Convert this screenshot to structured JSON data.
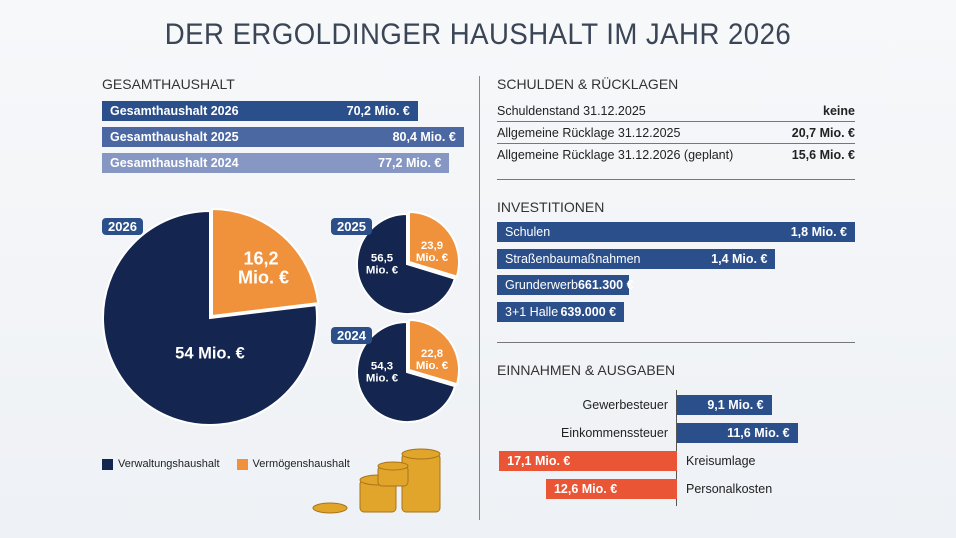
{
  "title": "DER ERGOLDINGER HAUSHALT IM JAHR 2026",
  "colors": {
    "verwaltung": "#14254f",
    "vermoegen": "#f0913b",
    "bar2026": "#2b4f8a",
    "bar2025": "#4b68a3",
    "bar2024": "#8697c4",
    "invest": "#2b4f8a",
    "einnahmen": "#2b4f8a",
    "ausgaben": "#ea5535"
  },
  "gesamt": {
    "heading": "GESAMTHAUSHALT",
    "bars": [
      {
        "label": "Gesamthaushalt 2026",
        "value": 70.2,
        "text": "70,2 Mio. €"
      },
      {
        "label": "Gesamthaushalt 2025",
        "value": 80.4,
        "text": "80,4 Mio. €"
      },
      {
        "label": "Gesamthaushalt 2024",
        "value": 77.2,
        "text": "77,2 Mio. €"
      }
    ]
  },
  "chart_data": [
    {
      "type": "pie",
      "title": "2026",
      "slices": [
        {
          "name": "Verwaltungshaushalt",
          "value": 54,
          "label": "54 Mio. €"
        },
        {
          "name": "Vermögenshaushalt",
          "value": 16.2,
          "label": "16,2 Mio. €"
        }
      ]
    },
    {
      "type": "pie",
      "title": "2025",
      "slices": [
        {
          "name": "Verwaltungshaushalt",
          "value": 56.5,
          "label": "56,5 Mio. €"
        },
        {
          "name": "Vermögenshaushalt",
          "value": 23.9,
          "label": "23,9 Mio. €"
        }
      ]
    },
    {
      "type": "pie",
      "title": "2024",
      "slices": [
        {
          "name": "Verwaltungshaushalt",
          "value": 54.3,
          "label": "54,3 Mio. €"
        },
        {
          "name": "Vermögenshaushalt",
          "value": 22.8,
          "label": "22,8 Mio. €"
        }
      ]
    }
  ],
  "legend": [
    "Verwaltungshaushalt",
    "Vermögenshaushalt"
  ],
  "schulden": {
    "heading": "SCHULDEN & RÜCKLAGEN",
    "rows": [
      {
        "label": "Schuldenstand 31.12.2025",
        "value": "keine"
      },
      {
        "label": "Allgemeine Rücklage 31.12.2025",
        "value": "20,7 Mio. €"
      },
      {
        "label": "Allgemeine Rücklage 31.12.2026 (geplant)",
        "value": "15,6 Mio. €"
      }
    ]
  },
  "invest": {
    "heading": "INVESTITIONEN",
    "bars": [
      {
        "label": "Schulen",
        "value": 1800000,
        "text": "1,8 Mio. €"
      },
      {
        "label": "Straßenbaumaßnahmen",
        "value": 1400000,
        "text": "1,4 Mio. €"
      },
      {
        "label": "Grunderwerb",
        "value": 661300,
        "text": "661.300 €"
      },
      {
        "label": "3+1 Halle",
        "value": 639000,
        "text": "639.000 €"
      }
    ]
  },
  "einaus": {
    "heading": "EINNAHMEN & AUSGABEN",
    "einnahmen": [
      {
        "label": "Gewerbesteuer",
        "value": 9.1,
        "text": "9,1 Mio. €"
      },
      {
        "label": "Einkommenssteuer",
        "value": 11.6,
        "text": "11,6 Mio. €"
      }
    ],
    "ausgaben": [
      {
        "label": "Kreisumlage",
        "value": 17.1,
        "text": "17,1 Mio. €"
      },
      {
        "label": "Personalkosten",
        "value": 12.6,
        "text": "12,6 Mio. €"
      }
    ]
  }
}
